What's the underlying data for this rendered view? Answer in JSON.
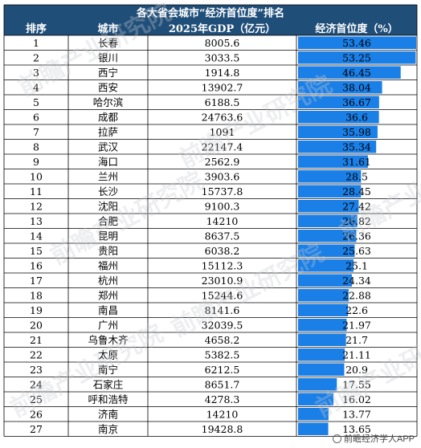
{
  "colors": {
    "header_bg": "#1f4e79",
    "bar": "#1a7fe6",
    "grid": "#000000"
  },
  "chart_data": {
    "type": "table",
    "title": "各大省会城市“经济首位度”排名",
    "columns": [
      "排序",
      "城市",
      "2025年GDP（亿元）",
      "经济首位度（%）"
    ],
    "rows": [
      {
        "rank": "1",
        "city": "长春",
        "gdp": "8005.6",
        "primacy": "53.46",
        "value": 53.46
      },
      {
        "rank": "2",
        "city": "银川",
        "gdp": "3033.5",
        "primacy": "53.25",
        "value": 53.25
      },
      {
        "rank": "3",
        "city": "西宁",
        "gdp": "1914.8",
        "primacy": "46.45",
        "value": 46.45
      },
      {
        "rank": "4",
        "city": "西安",
        "gdp": "13902.7",
        "primacy": "38.04",
        "value": 38.04
      },
      {
        "rank": "5",
        "city": "哈尔滨",
        "gdp": "6188.5",
        "primacy": "36.67",
        "value": 36.67
      },
      {
        "rank": "6",
        "city": "成都",
        "gdp": "24763.6",
        "primacy": "36.6",
        "value": 36.6
      },
      {
        "rank": "7",
        "city": "拉萨",
        "gdp": "1091",
        "primacy": "35.98",
        "value": 35.98
      },
      {
        "rank": "8",
        "city": "武汉",
        "gdp": "22147.4",
        "primacy": "35.34",
        "value": 35.34
      },
      {
        "rank": "9",
        "city": "海口",
        "gdp": "2562.9",
        "primacy": "31.61",
        "value": 31.61
      },
      {
        "rank": "10",
        "city": "兰州",
        "gdp": "3903.6",
        "primacy": "28.5",
        "value": 28.5
      },
      {
        "rank": "11",
        "city": "长沙",
        "gdp": "15737.8",
        "primacy": "28.45",
        "value": 28.45
      },
      {
        "rank": "12",
        "city": "沈阳",
        "gdp": "9100.3",
        "primacy": "27.42",
        "value": 27.42
      },
      {
        "rank": "13",
        "city": "合肥",
        "gdp": "14210",
        "primacy": "26.82",
        "value": 26.82
      },
      {
        "rank": "14",
        "city": "昆明",
        "gdp": "8637.5",
        "primacy": "26.36",
        "value": 26.36
      },
      {
        "rank": "15",
        "city": "贵阳",
        "gdp": "6038.2",
        "primacy": "25.63",
        "value": 25.63
      },
      {
        "rank": "16",
        "city": "福州",
        "gdp": "15112.3",
        "primacy": "25.1",
        "value": 25.1
      },
      {
        "rank": "17",
        "city": "杭州",
        "gdp": "23010.9",
        "primacy": "24.34",
        "value": 24.34
      },
      {
        "rank": "18",
        "city": "郑州",
        "gdp": "15244.6",
        "primacy": "22.88",
        "value": 22.88
      },
      {
        "rank": "19",
        "city": "南昌",
        "gdp": "8141.6",
        "primacy": "22.6",
        "value": 22.6
      },
      {
        "rank": "20",
        "city": "广州",
        "gdp": "32039.5",
        "primacy": "21.97",
        "value": 21.97
      },
      {
        "rank": "21",
        "city": "乌鲁木齐",
        "gdp": "4658.2",
        "primacy": "21.7",
        "value": 21.7
      },
      {
        "rank": "22",
        "city": "太原",
        "gdp": "5382.5",
        "primacy": "21.11",
        "value": 21.11
      },
      {
        "rank": "23",
        "city": "南宁",
        "gdp": "6212.5",
        "primacy": "20.9",
        "value": 20.9
      },
      {
        "rank": "24",
        "city": "石家庄",
        "gdp": "8651.7",
        "primacy": "17.55",
        "value": 17.55
      },
      {
        "rank": "25",
        "city": "呼和浩特",
        "gdp": "4278.3",
        "primacy": "16.02",
        "value": 16.02
      },
      {
        "rank": "26",
        "city": "济南",
        "gdp": "14210",
        "primacy": "13.77",
        "value": 13.77
      },
      {
        "rank": "27",
        "city": "南京",
        "gdp": "19428.8",
        "primacy": "13.65",
        "value": 13.65
      }
    ],
    "bar_max": 53.46
  },
  "watermark": "前瞻产业研究院",
  "footer": {
    "text": "前瞻经济学人APP",
    "icon": "qianzhan-logo-icon"
  }
}
